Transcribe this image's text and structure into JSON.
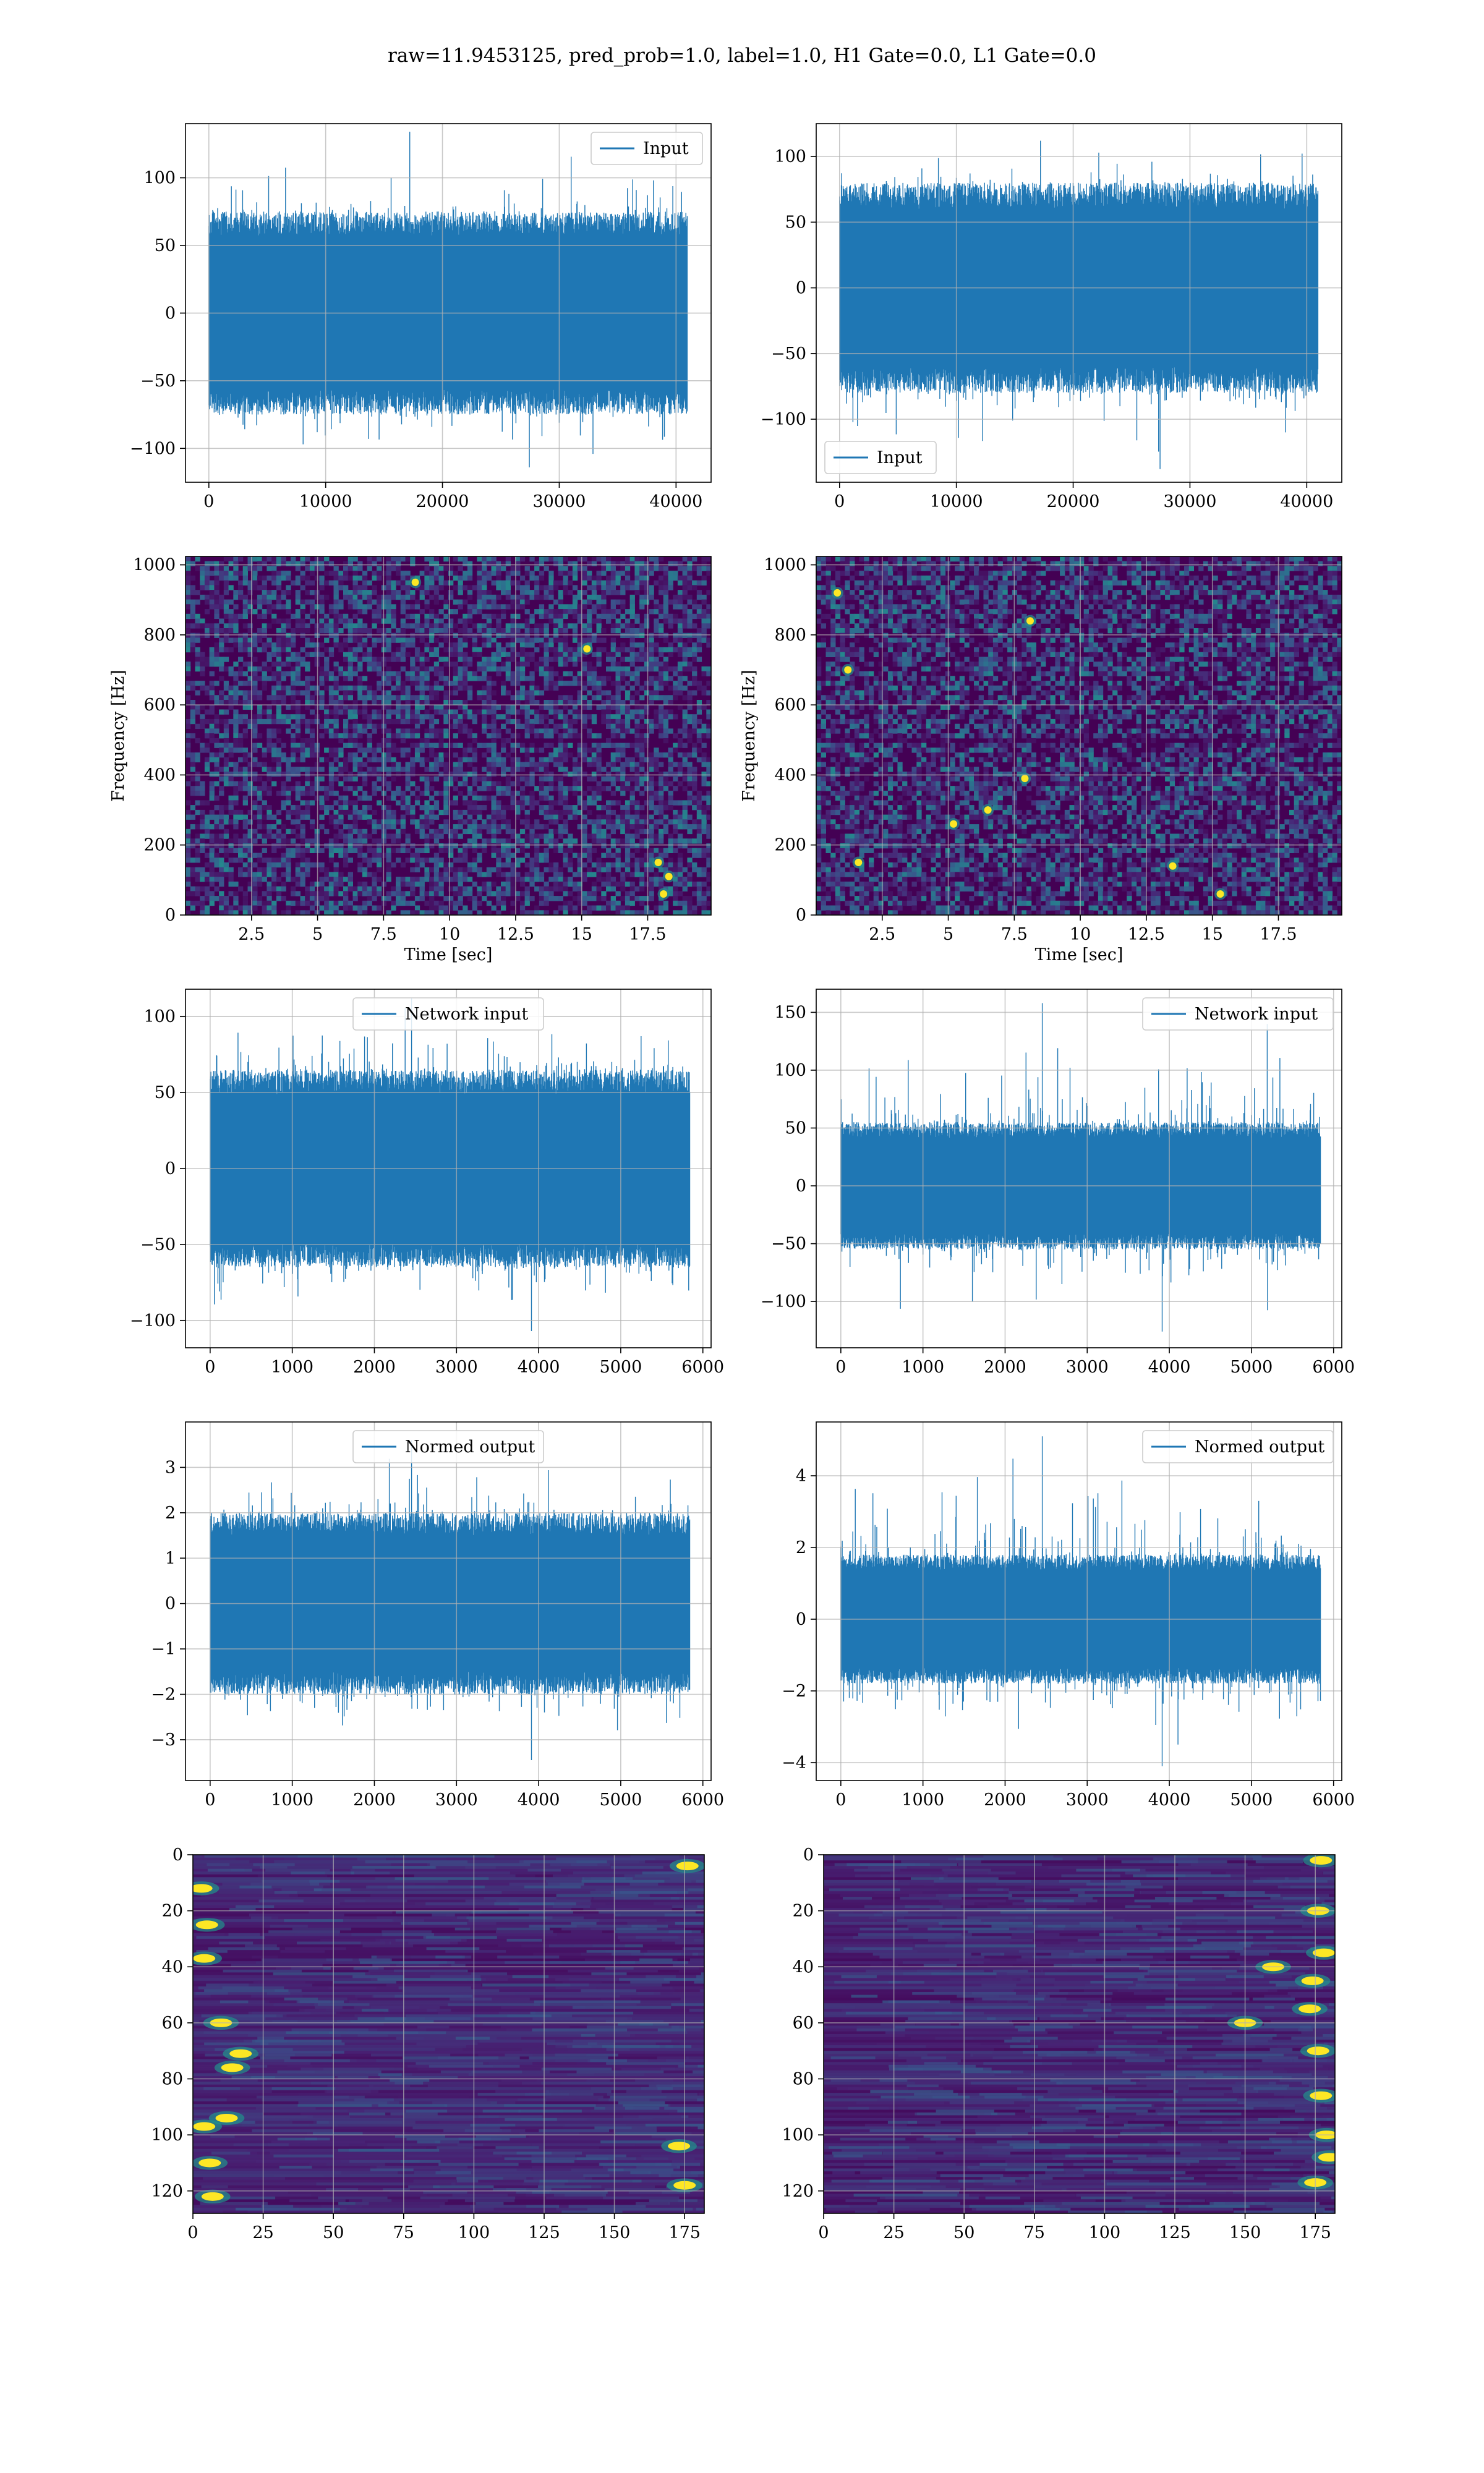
{
  "title": "raw=11.9453125, pred_prob=1.0, label=1.0, H1 Gate=0.0, L1 Gate=0.0",
  "colors": {
    "series": "#1f77b4",
    "grid": "#b0b0b0",
    "frame": "#000000",
    "heat_low": "#440154",
    "heat_mid": "#21918c",
    "heat_high": "#fde725"
  },
  "chart_data": [
    {
      "id": "h1-input",
      "type": "line",
      "title": "",
      "xlabel": "",
      "ylabel": "",
      "xlim": [
        -2000,
        43000
      ],
      "ylim": [
        -125,
        140
      ],
      "xticks": [
        0,
        10000,
        20000,
        30000,
        40000
      ],
      "yticks": [
        -100,
        -50,
        0,
        50,
        100
      ],
      "legend": {
        "position": "upper right",
        "entries": [
          "Input"
        ]
      },
      "grid": true,
      "series": [
        {
          "name": "Input",
          "x_range": [
            0,
            40959
          ],
          "envelope": [
            -114,
            134
          ],
          "typical": [
            -75,
            75
          ]
        }
      ]
    },
    {
      "id": "l1-input",
      "type": "line",
      "title": "",
      "xlabel": "",
      "ylabel": "",
      "xlim": [
        -2000,
        43000
      ],
      "ylim": [
        -148,
        125
      ],
      "xticks": [
        0,
        10000,
        20000,
        30000,
        40000
      ],
      "yticks": [
        -100,
        -50,
        0,
        50,
        100
      ],
      "legend": {
        "position": "lower left",
        "entries": [
          "Input"
        ]
      },
      "grid": true,
      "series": [
        {
          "name": "Input",
          "x_range": [
            0,
            40959
          ],
          "envelope": [
            -138,
            112
          ],
          "typical": [
            -80,
            80
          ]
        }
      ]
    },
    {
      "id": "h1-spectrogram",
      "type": "heatmap",
      "title": "",
      "xlabel": "Time [sec]",
      "ylabel": "Frequency [Hz]",
      "xlim": [
        0,
        19.9
      ],
      "ylim": [
        0,
        1024
      ],
      "xticks": [
        2.5,
        5.0,
        7.5,
        10.0,
        12.5,
        15.0,
        17.5
      ],
      "yticks": [
        0,
        200,
        400,
        600,
        800,
        1000
      ],
      "grid": true,
      "colormap": "viridis",
      "dark_band_hz": 500,
      "bright_spots": [
        [
          18.3,
          110
        ],
        [
          18.1,
          60
        ],
        [
          17.9,
          150
        ],
        [
          8.7,
          950
        ],
        [
          15.2,
          760
        ]
      ]
    },
    {
      "id": "l1-spectrogram",
      "type": "heatmap",
      "title": "",
      "xlabel": "Time [sec]",
      "ylabel": "Frequency [Hz]",
      "xlim": [
        0,
        19.9
      ],
      "ylim": [
        0,
        1024
      ],
      "xticks": [
        2.5,
        5.0,
        7.5,
        10.0,
        12.5,
        15.0,
        17.5
      ],
      "yticks": [
        0,
        200,
        400,
        600,
        800,
        1000
      ],
      "grid": true,
      "colormap": "viridis",
      "dark_band_hz": 500,
      "bright_spots": [
        [
          0.8,
          920
        ],
        [
          1.2,
          700
        ],
        [
          1.6,
          150
        ],
        [
          5.2,
          260
        ],
        [
          6.5,
          300
        ],
        [
          7.9,
          390
        ],
        [
          13.5,
          140
        ],
        [
          15.3,
          60
        ],
        [
          8.1,
          840
        ]
      ]
    },
    {
      "id": "h1-network-input",
      "type": "line",
      "title": "",
      "xlabel": "",
      "ylabel": "",
      "xlim": [
        -300,
        6100
      ],
      "ylim": [
        -118,
        118
      ],
      "xticks": [
        0,
        1000,
        2000,
        3000,
        4000,
        5000,
        6000
      ],
      "yticks": [
        -100,
        -50,
        0,
        50,
        100
      ],
      "legend": {
        "position": "upper center",
        "entries": [
          "Network input"
        ]
      },
      "grid": true,
      "series": [
        {
          "name": "Network input",
          "x_range": [
            0,
            5840
          ],
          "envelope": [
            -107,
            112
          ],
          "typical": [
            -65,
            65
          ]
        }
      ]
    },
    {
      "id": "l1-network-input",
      "type": "line",
      "title": "",
      "xlabel": "",
      "ylabel": "",
      "xlim": [
        -300,
        6100
      ],
      "ylim": [
        -140,
        170
      ],
      "xticks": [
        0,
        1000,
        2000,
        3000,
        4000,
        5000,
        6000
      ],
      "yticks": [
        -100,
        -50,
        0,
        50,
        100,
        150
      ],
      "legend": {
        "position": "upper right",
        "entries": [
          "Network input"
        ]
      },
      "grid": true,
      "series": [
        {
          "name": "Network input",
          "x_range": [
            0,
            5840
          ],
          "envelope": [
            -126,
            158
          ],
          "typical": [
            -55,
            55
          ]
        }
      ]
    },
    {
      "id": "h1-normed-output",
      "type": "line",
      "title": "",
      "xlabel": "",
      "ylabel": "",
      "xlim": [
        -300,
        6100
      ],
      "ylim": [
        -3.9,
        4.0
      ],
      "xticks": [
        0,
        1000,
        2000,
        3000,
        4000,
        5000,
        6000
      ],
      "yticks": [
        -3,
        -2,
        -1,
        0,
        1,
        2,
        3
      ],
      "legend": {
        "position": "upper center",
        "entries": [
          "Normed output"
        ]
      },
      "grid": true,
      "series": [
        {
          "name": "Normed output",
          "x_range": [
            0,
            5840
          ],
          "envelope": [
            -3.45,
            3.6
          ],
          "typical": [
            -2.0,
            2.0
          ]
        }
      ]
    },
    {
      "id": "l1-normed-output",
      "type": "line",
      "title": "",
      "xlabel": "",
      "ylabel": "",
      "xlim": [
        -300,
        6100
      ],
      "ylim": [
        -4.5,
        5.5
      ],
      "xticks": [
        0,
        1000,
        2000,
        3000,
        4000,
        5000,
        6000
      ],
      "yticks": [
        -4,
        -2,
        0,
        2,
        4
      ],
      "legend": {
        "position": "upper right",
        "entries": [
          "Normed output"
        ]
      },
      "grid": true,
      "series": [
        {
          "name": "Normed output",
          "x_range": [
            0,
            5840
          ],
          "envelope": [
            -4.1,
            5.1
          ],
          "typical": [
            -1.8,
            1.8
          ]
        }
      ]
    },
    {
      "id": "h1-feature-map",
      "type": "heatmap",
      "title": "",
      "xlabel": "",
      "ylabel": "",
      "xlim": [
        0,
        182
      ],
      "ylim": [
        128,
        0
      ],
      "xticks": [
        0,
        25,
        50,
        75,
        100,
        125,
        150,
        175
      ],
      "yticks": [
        0,
        20,
        40,
        60,
        80,
        100,
        120
      ],
      "grid": true,
      "colormap": "viridis",
      "bright_spots": [
        [
          3,
          12
        ],
        [
          5,
          25
        ],
        [
          4,
          37
        ],
        [
          10,
          60
        ],
        [
          14,
          76
        ],
        [
          12,
          94
        ],
        [
          4,
          97
        ],
        [
          6,
          110
        ],
        [
          7,
          122
        ],
        [
          17,
          71
        ],
        [
          176,
          4
        ],
        [
          173,
          104
        ],
        [
          175,
          118
        ]
      ]
    },
    {
      "id": "l1-feature-map",
      "type": "heatmap",
      "title": "",
      "xlabel": "",
      "ylabel": "",
      "xlim": [
        0,
        182
      ],
      "ylim": [
        128,
        0
      ],
      "xticks": [
        0,
        25,
        50,
        75,
        100,
        125,
        150,
        175
      ],
      "yticks": [
        0,
        20,
        40,
        60,
        80,
        100,
        120
      ],
      "grid": true,
      "colormap": "viridis",
      "bright_spots": [
        [
          177,
          2
        ],
        [
          176,
          20
        ],
        [
          178,
          35
        ],
        [
          174,
          45
        ],
        [
          173,
          55
        ],
        [
          176,
          70
        ],
        [
          177,
          86
        ],
        [
          179,
          100
        ],
        [
          180,
          108
        ],
        [
          175,
          117
        ],
        [
          150,
          60
        ],
        [
          160,
          40
        ]
      ]
    }
  ]
}
